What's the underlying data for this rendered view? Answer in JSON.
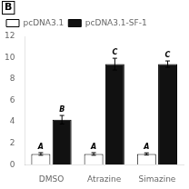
{
  "chart_data": {
    "type": "bar",
    "categories": [
      "DMSO",
      "Atrazine",
      "Simazine"
    ],
    "series": [
      {
        "name": "pcDNA3.1",
        "color": "#ffffff",
        "values": [
          1.0,
          1.0,
          1.0
        ],
        "errors": [
          0.12,
          0.12,
          0.1
        ],
        "annotations": [
          "A",
          "A",
          "A"
        ]
      },
      {
        "name": "pcDNA3.1-SF-1",
        "color": "#111111",
        "values": [
          4.2,
          9.4,
          9.4
        ],
        "errors": [
          0.4,
          0.55,
          0.3
        ],
        "annotations": [
          "B",
          "C",
          "C"
        ]
      }
    ],
    "annotations": [
      "B"
    ],
    "ylim": [
      0,
      12
    ],
    "yticks": [
      0,
      2,
      4,
      6,
      8,
      10,
      12
    ],
    "grid": false,
    "legend": "upper left"
  }
}
